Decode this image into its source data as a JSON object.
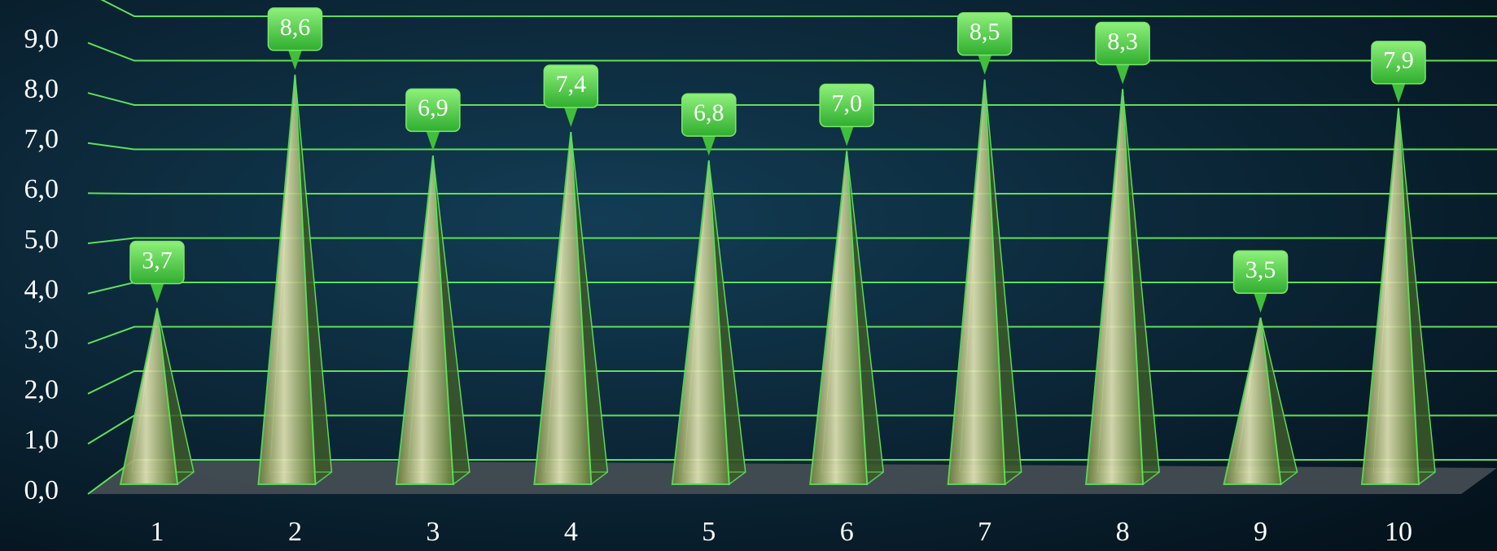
{
  "chart_data": {
    "type": "pyramid",
    "categories": [
      "1",
      "2",
      "3",
      "4",
      "5",
      "6",
      "7",
      "8",
      "9",
      "10"
    ],
    "values": [
      3.7,
      8.6,
      6.9,
      7.4,
      6.8,
      7.0,
      8.5,
      8.3,
      3.5,
      7.9
    ],
    "value_labels": [
      "3,7",
      "8,6",
      "6,9",
      "7,4",
      "6,8",
      "7,0",
      "8,5",
      "8,3",
      "3,5",
      "7,9"
    ],
    "color": "#5ee05a",
    "ylim": [
      0,
      10
    ],
    "yticks": [
      {
        "value": 0,
        "label": "0,0"
      },
      {
        "value": 1,
        "label": "1,0"
      },
      {
        "value": 2,
        "label": "2,0"
      },
      {
        "value": 3,
        "label": "3,0"
      },
      {
        "value": 4,
        "label": "4,0"
      },
      {
        "value": 5,
        "label": "5,0"
      },
      {
        "value": 6,
        "label": "6,0"
      },
      {
        "value": 7,
        "label": "7,0"
      },
      {
        "value": 8,
        "label": "8,0"
      },
      {
        "value": 9,
        "label": "9,0"
      }
    ],
    "grid": true
  }
}
